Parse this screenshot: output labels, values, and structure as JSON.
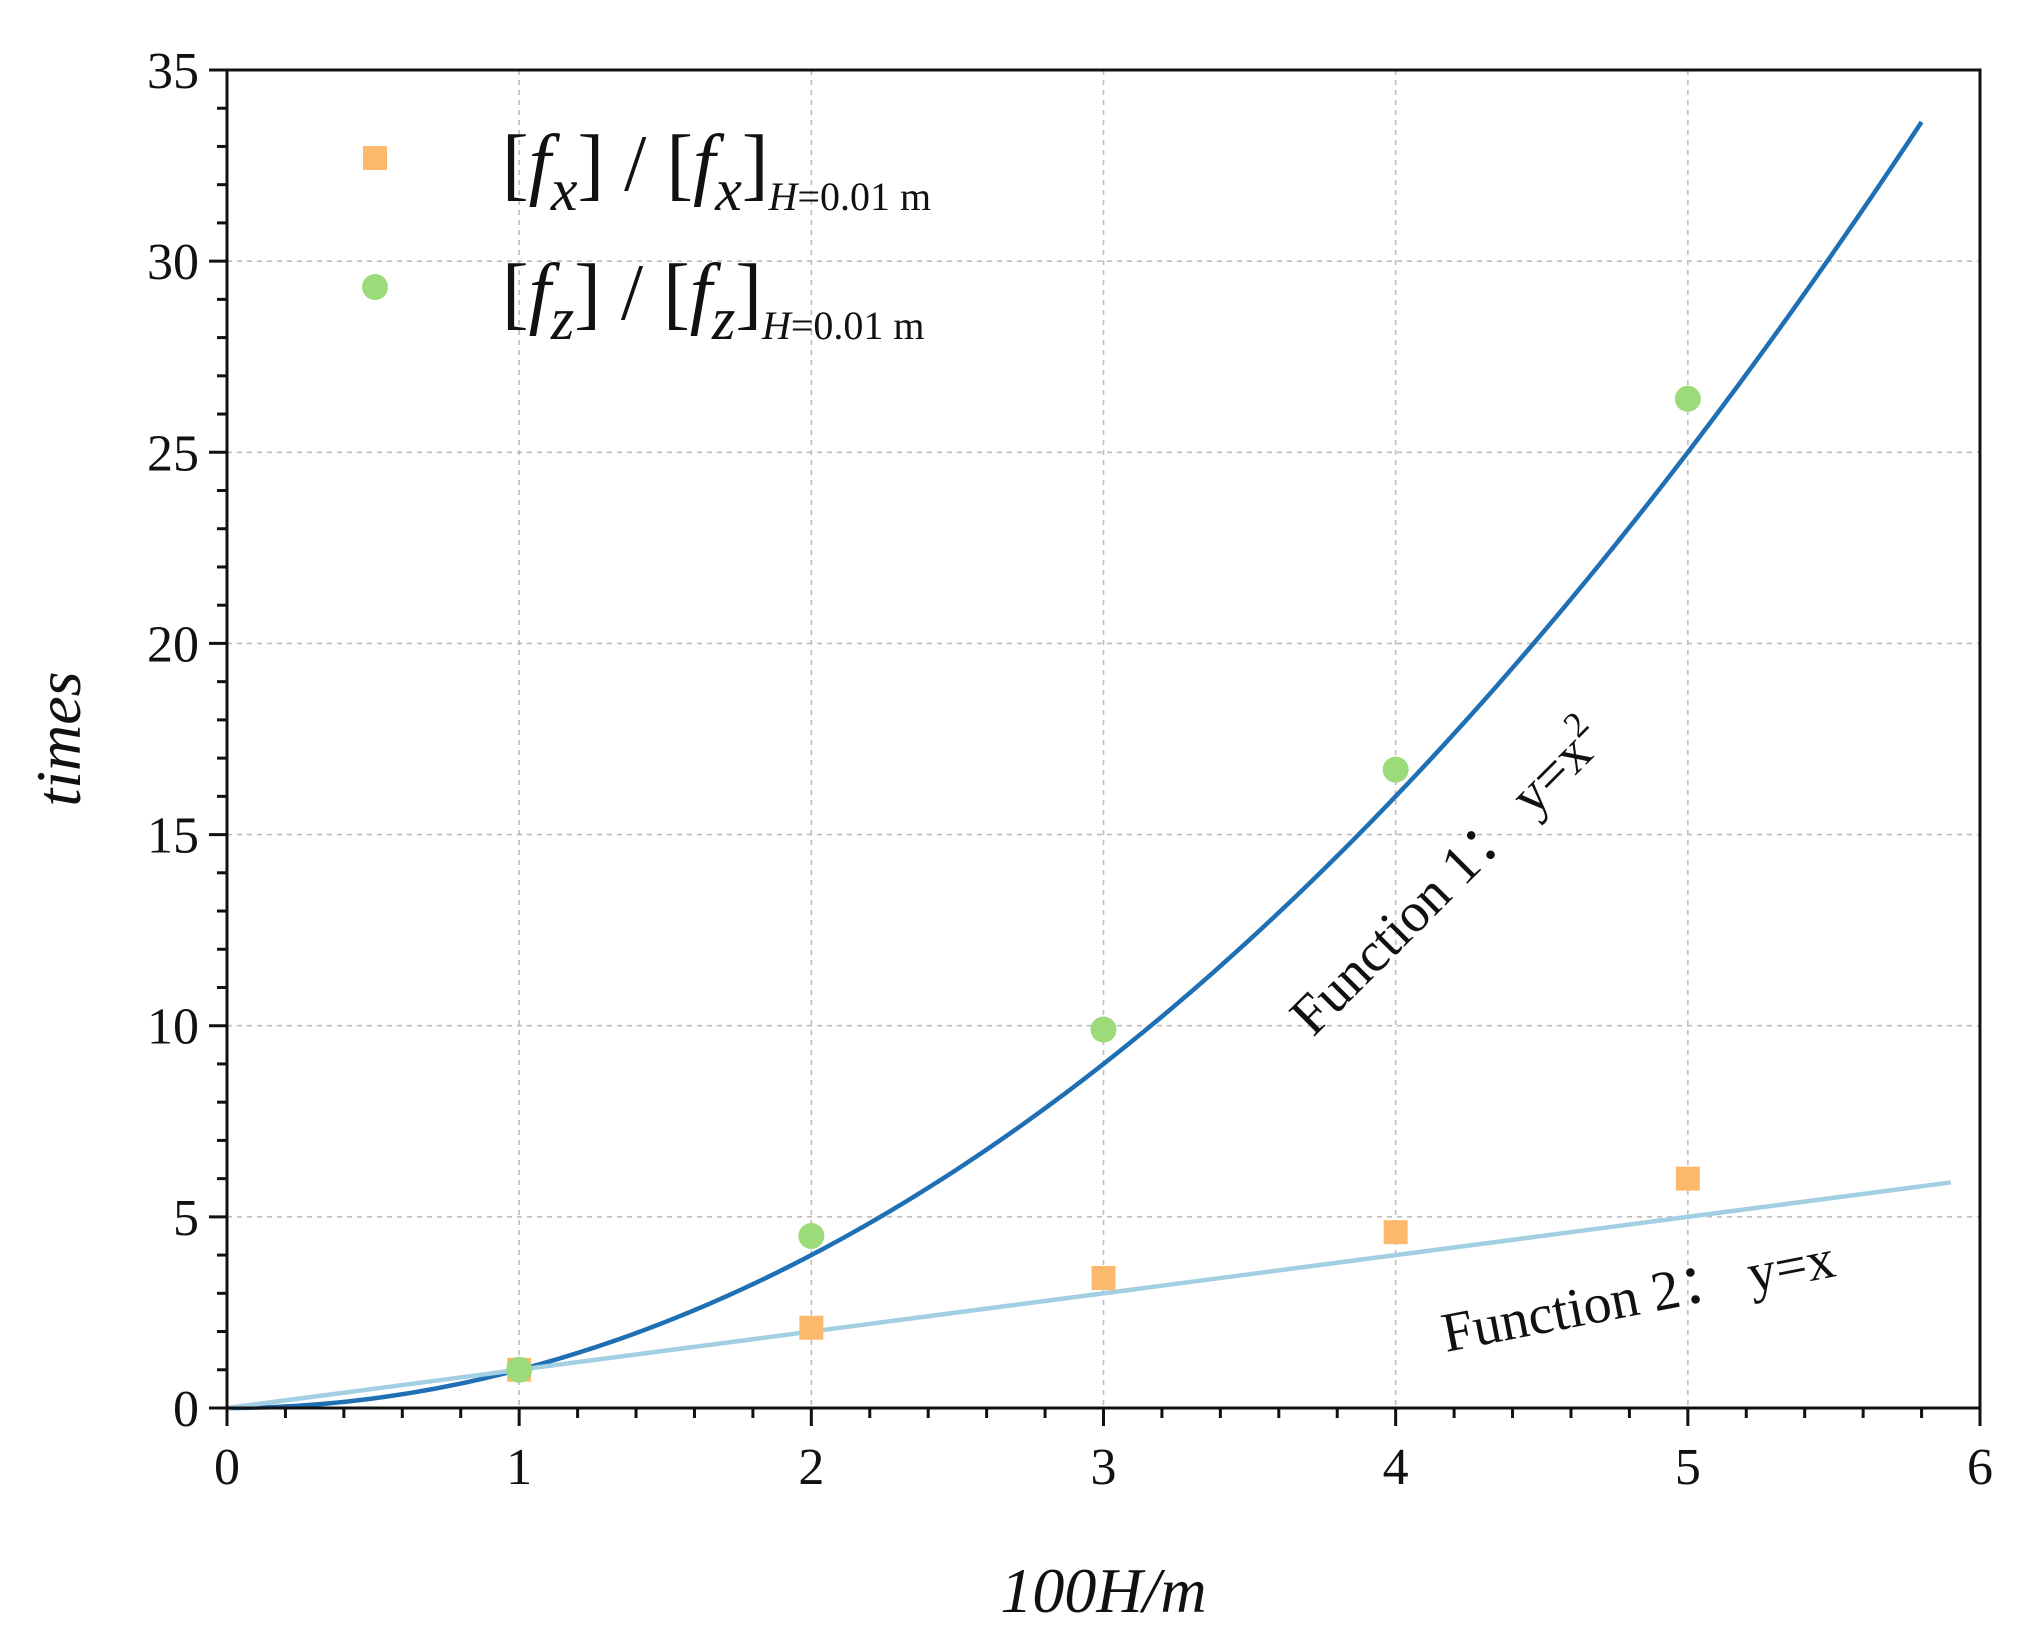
{
  "chart_data": {
    "type": "scatter",
    "xlabel": "100H/m",
    "ylabel": "times",
    "xlim": [
      0,
      6
    ],
    "ylim": [
      0,
      35
    ],
    "x_ticks": [
      0,
      1,
      2,
      3,
      4,
      5,
      6
    ],
    "y_ticks": [
      0,
      5,
      10,
      15,
      20,
      25,
      30,
      35
    ],
    "x_tick_labels": [
      "0",
      "1",
      "2",
      "3",
      "4",
      "5",
      "6"
    ],
    "y_tick_labels": [
      "0",
      "5",
      "10",
      "15",
      "20",
      "25",
      "30",
      "35"
    ],
    "x_minor_step": 0.2,
    "y_minor_step": 1,
    "grid": true,
    "legend_position": "top-left",
    "series": [
      {
        "name": "[fx] / [fx]H=0.01 m",
        "marker": "square",
        "color": "#FDB96B",
        "x": [
          1,
          2,
          3,
          4,
          5
        ],
        "y": [
          1.0,
          2.1,
          3.4,
          4.6,
          6.0
        ]
      },
      {
        "name": "[fz] / [fz]H=0.01 m",
        "marker": "circle",
        "color": "#9BDB7A",
        "x": [
          1,
          2,
          3,
          4,
          5
        ],
        "y": [
          1.0,
          4.5,
          9.9,
          16.7,
          26.4
        ]
      }
    ],
    "legend": [
      {
        "f": "f",
        "sub": "x",
        "sep": " / ",
        "cond": "H",
        "cond_rest": "=0.01 m"
      },
      {
        "f": "f",
        "sub": "z",
        "sep": " / ",
        "cond": "H",
        "cond_rest": "=0.01 m"
      }
    ],
    "functions": [
      {
        "label_main": "Function 1：",
        "label_eq": "y=x",
        "label_sup": "2",
        "expr": "y=x^2",
        "x_range": [
          0,
          5.8
        ],
        "color": "#1F6FB4"
      },
      {
        "label_main": "Function 2：",
        "label_eq": "y=x",
        "label_sup": "",
        "expr": "y=x",
        "x_range": [
          0,
          5.9
        ],
        "color": "#A3CFE3"
      }
    ]
  }
}
